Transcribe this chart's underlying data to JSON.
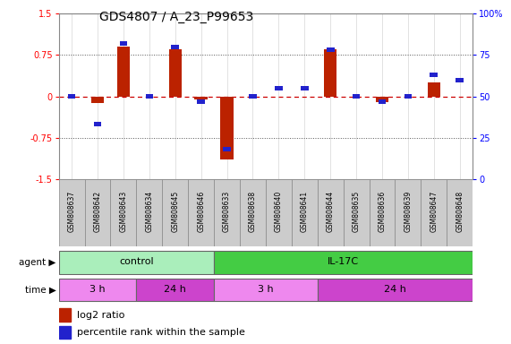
{
  "title": "GDS4807 / A_23_P99653",
  "samples": [
    "GSM808637",
    "GSM808642",
    "GSM808643",
    "GSM808634",
    "GSM808645",
    "GSM808646",
    "GSM808633",
    "GSM808638",
    "GSM808640",
    "GSM808641",
    "GSM808644",
    "GSM808635",
    "GSM808636",
    "GSM808639",
    "GSM808647",
    "GSM808648"
  ],
  "log2_ratio": [
    0.0,
    -0.12,
    0.9,
    0.0,
    0.85,
    -0.05,
    -1.15,
    0.0,
    0.0,
    0.0,
    0.85,
    0.0,
    -0.1,
    0.0,
    0.25,
    0.0
  ],
  "percentile": [
    50,
    33,
    82,
    50,
    80,
    47,
    18,
    50,
    55,
    55,
    78,
    50,
    47,
    50,
    63,
    60
  ],
  "agent_groups": [
    {
      "label": "control",
      "start": 0,
      "end": 6,
      "color": "#aaeebb"
    },
    {
      "label": "IL-17C",
      "start": 6,
      "end": 16,
      "color": "#44cc44"
    }
  ],
  "time_groups": [
    {
      "label": "3 h",
      "start": 0,
      "end": 3,
      "color": "#ee88ee"
    },
    {
      "label": "24 h",
      "start": 3,
      "end": 6,
      "color": "#cc44cc"
    },
    {
      "label": "3 h",
      "start": 6,
      "end": 10,
      "color": "#ee88ee"
    },
    {
      "label": "24 h",
      "start": 10,
      "end": 16,
      "color": "#cc44cc"
    }
  ],
  "ylim": [
    -1.5,
    1.5
  ],
  "yticks_left": [
    -1.5,
    -0.75,
    0,
    0.75,
    1.5
  ],
  "yticks_right": [
    0,
    25,
    50,
    75,
    100
  ],
  "bar_color_red": "#bb2200",
  "bar_color_blue": "#2222cc",
  "hline_zero_color": "#cc0000",
  "hline_dotted_color": "#555555",
  "background_color": "#ffffff",
  "plot_bg": "#ffffff",
  "sample_box_color": "#cccccc",
  "title_fontsize": 10,
  "tick_fontsize": 7,
  "label_fontsize": 7,
  "legend_fontsize": 8
}
